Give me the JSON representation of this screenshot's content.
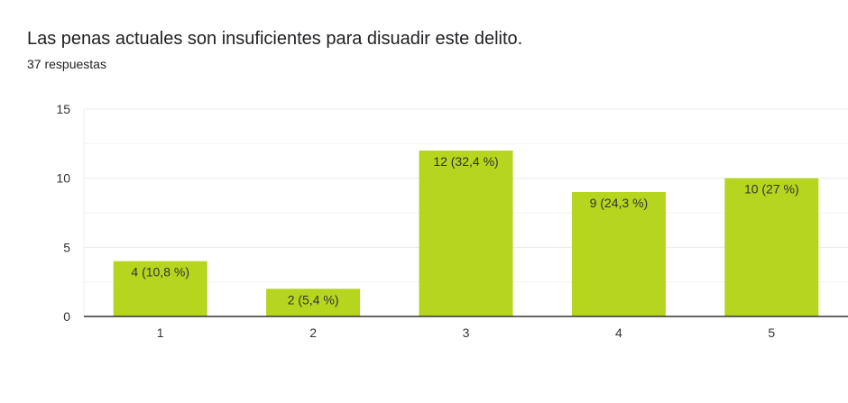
{
  "header": {
    "title": "Las penas actuales son insuficientes para disuadir este delito.",
    "responses": "37 respuestas"
  },
  "colors": {
    "bar": "#b5d51f",
    "grid": "#ececec",
    "axis": "#333333",
    "text": "#333333"
  },
  "chart_data": {
    "type": "bar",
    "title": "Las penas actuales son insuficientes para disuadir este delito.",
    "categories": [
      "1",
      "2",
      "3",
      "4",
      "5"
    ],
    "values": [
      4,
      2,
      12,
      9,
      10
    ],
    "data_labels": [
      "4 (10,8 %)",
      "2 (5,4 %)",
      "12 (32,4 %)",
      "9 (24,3 %)",
      "10 (27 %)"
    ],
    "yticks": [
      0,
      5,
      10,
      15
    ],
    "ylim": [
      0,
      15
    ],
    "grid": true,
    "xlabel": "",
    "ylabel": ""
  }
}
